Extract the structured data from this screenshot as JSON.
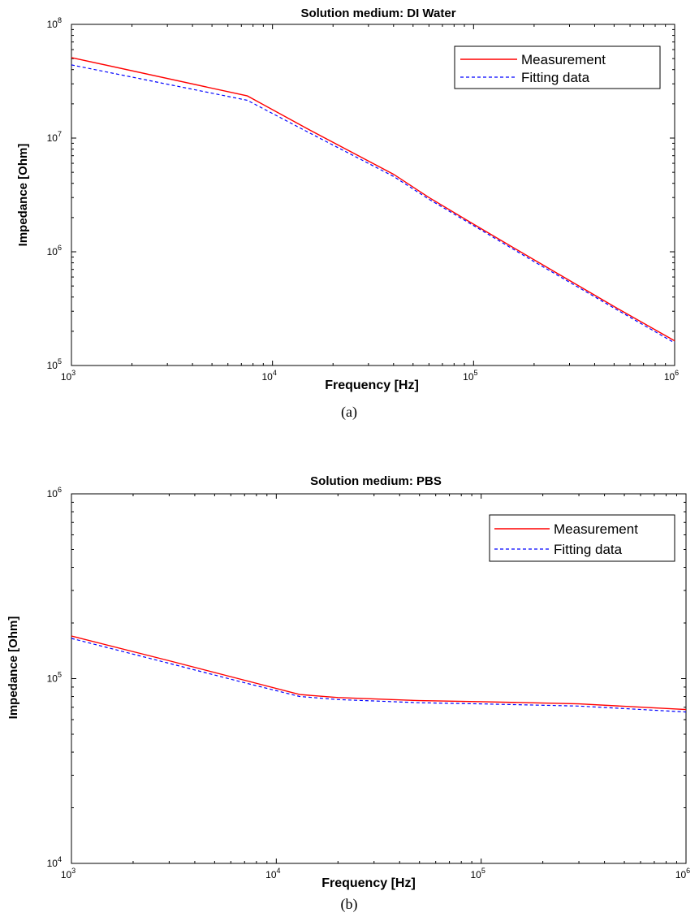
{
  "chart_data": [
    {
      "type": "line",
      "panel_label": "(a)",
      "title": "Solution medium: DI Water",
      "xlabel": "Frequency [Hz]",
      "ylabel": "Impedance [Ohm]",
      "xscale": "log",
      "yscale": "log",
      "xlim": [
        1000,
        1000000
      ],
      "ylim": [
        100000,
        100000000
      ],
      "x_ticks": [
        {
          "base": "10",
          "exp": "3",
          "value": 1000
        },
        {
          "base": "10",
          "exp": "4",
          "value": 10000
        },
        {
          "base": "10",
          "exp": "5",
          "value": 100000
        },
        {
          "base": "10",
          "exp": "6",
          "value": 1000000
        }
      ],
      "y_ticks": [
        {
          "base": "10",
          "exp": "5",
          "value": 100000
        },
        {
          "base": "10",
          "exp": "6",
          "value": 1000000
        },
        {
          "base": "10",
          "exp": "7",
          "value": 10000000
        },
        {
          "base": "10",
          "exp": "8",
          "value": 100000000
        }
      ],
      "legend": {
        "position": "top-right"
      },
      "grid": false,
      "series": [
        {
          "name": "Measurement",
          "color": "#ff0000",
          "style": "solid",
          "x": [
            1000,
            7500,
            15000,
            40000,
            60000,
            100000,
            200000,
            500000,
            1000000
          ],
          "y": [
            51000000,
            23500000,
            12000000,
            4800000,
            3000000,
            1750000,
            850000,
            330000,
            165000
          ]
        },
        {
          "name": "Fitting data",
          "color": "#0000ff",
          "style": "dashed",
          "x": [
            1000,
            7500,
            15000,
            40000,
            60000,
            100000,
            200000,
            500000,
            1000000
          ],
          "y": [
            44000000,
            21500000,
            11300000,
            4600000,
            2900000,
            1700000,
            820000,
            320000,
            158000
          ]
        }
      ]
    },
    {
      "type": "line",
      "panel_label": "(b)",
      "title": "Solution medium: PBS",
      "xlabel": "Frequency [Hz]",
      "ylabel": "Impedance [Ohm]",
      "xscale": "log",
      "yscale": "log",
      "xlim": [
        1000,
        1000000
      ],
      "ylim": [
        10000,
        1000000
      ],
      "x_ticks": [
        {
          "base": "10",
          "exp": "3",
          "value": 1000
        },
        {
          "base": "10",
          "exp": "4",
          "value": 10000
        },
        {
          "base": "10",
          "exp": "5",
          "value": 100000
        },
        {
          "base": "10",
          "exp": "6",
          "value": 1000000
        }
      ],
      "y_ticks": [
        {
          "base": "10",
          "exp": "4",
          "value": 10000
        },
        {
          "base": "10",
          "exp": "5",
          "value": 100000
        },
        {
          "base": "10",
          "exp": "6",
          "value": 1000000
        }
      ],
      "legend": {
        "position": "top-right"
      },
      "grid": false,
      "series": [
        {
          "name": "Measurement",
          "color": "#ff0000",
          "style": "solid",
          "x": [
            1000,
            3000,
            7000,
            13000,
            20000,
            50000,
            100000,
            300000,
            1000000
          ],
          "y": [
            170000,
            125000,
            98000,
            82000,
            79000,
            76000,
            75000,
            73000,
            68000
          ]
        },
        {
          "name": "Fitting data",
          "color": "#0000ff",
          "style": "dashed",
          "x": [
            1000,
            3000,
            7000,
            13000,
            20000,
            50000,
            100000,
            300000,
            1000000
          ],
          "y": [
            165000,
            121000,
            95000,
            80000,
            77000,
            74000,
            73000,
            71000,
            66000
          ]
        }
      ]
    }
  ]
}
